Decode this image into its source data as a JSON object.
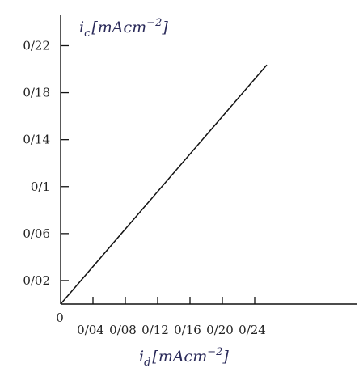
{
  "chart_data": {
    "type": "line",
    "title": "",
    "xlabel": {
      "symbol": "i",
      "subscript": "d",
      "unit": "[mAcm",
      "exponent": "−2",
      "close": "]"
    },
    "ylabel": {
      "symbol": "i",
      "subscript": "c",
      "unit": "[mAcm",
      "exponent": "−2",
      "close": "]"
    },
    "x_ticks": [
      {
        "value": 0,
        "label": "0"
      },
      {
        "value": 0.04,
        "label": "0/04"
      },
      {
        "value": 0.08,
        "label": "0/08"
      },
      {
        "value": 0.12,
        "label": "0/12"
      },
      {
        "value": 0.16,
        "label": "0/16"
      },
      {
        "value": 0.2,
        "label": "0/20"
      },
      {
        "value": 0.24,
        "label": "0/24"
      }
    ],
    "y_ticks": [
      {
        "value": 0.02,
        "label": "0/02"
      },
      {
        "value": 0.06,
        "label": "0/06"
      },
      {
        "value": 0.1,
        "label": "0/1"
      },
      {
        "value": 0.14,
        "label": "0/14"
      },
      {
        "value": 0.18,
        "label": "0/18"
      },
      {
        "value": 0.22,
        "label": "0/22"
      }
    ],
    "xlim": [
      0,
      0.2625
    ],
    "ylim": [
      0,
      0.2429
    ],
    "series": [
      {
        "x": [
          0,
          0.255
        ],
        "y": [
          0,
          0.2036
        ],
        "color": "#111111"
      }
    ],
    "grid": false,
    "legend": "none"
  }
}
